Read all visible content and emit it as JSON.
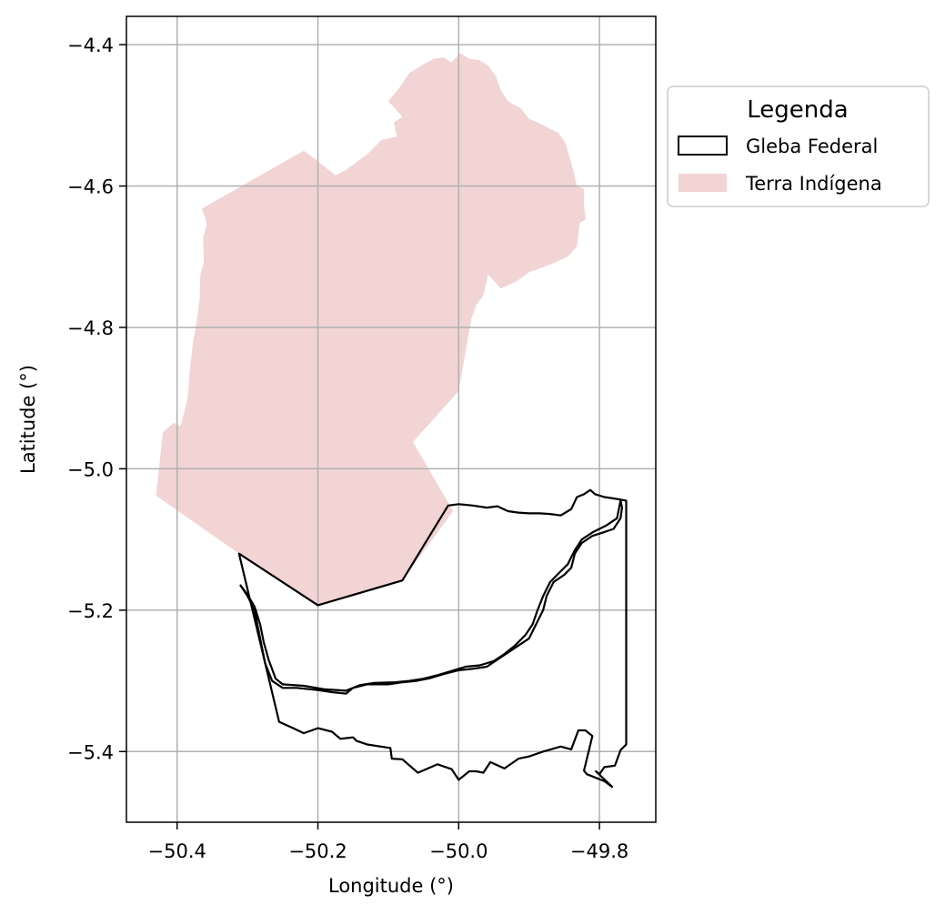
{
  "chart_data": {
    "type": "map",
    "xlabel": "Longitude (°)",
    "ylabel": "Latitude (°)",
    "xlim": [
      -50.472,
      -49.72
    ],
    "ylim": [
      -5.5,
      -4.36
    ],
    "xticks": [
      -50.4,
      -50.2,
      -50.0,
      -49.8
    ],
    "yticks": [
      -4.4,
      -4.6,
      -4.8,
      -5.0,
      -5.2,
      -5.4
    ],
    "xtick_labels": [
      "−50.4",
      "−50.2",
      "−50.0",
      "−49.8"
    ],
    "ytick_labels": [
      "−4.4",
      "−4.6",
      "−4.8",
      "−5.0",
      "−5.2",
      "−5.4"
    ],
    "grid": true,
    "legend": {
      "title": "Legenda",
      "placement": "outside-right-top",
      "entries": [
        "Gleba Federal",
        "Terra Indígena"
      ]
    },
    "colors": {
      "terra_indigena_fill": "#f2d4d4",
      "gleba_edge": "#000000",
      "grid": "#b0b0b0"
    },
    "layers": [
      {
        "name": "Terra Indígena",
        "kind": "filled-polygon",
        "rings": [
          [
            [
              -50.43,
              -5.038
            ],
            [
              -50.42,
              -4.948
            ],
            [
              -50.405,
              -4.935
            ],
            [
              -50.395,
              -4.94
            ],
            [
              -50.385,
              -4.9
            ],
            [
              -50.382,
              -4.86
            ],
            [
              -50.378,
              -4.825
            ],
            [
              -50.372,
              -4.79
            ],
            [
              -50.368,
              -4.76
            ],
            [
              -50.367,
              -4.726
            ],
            [
              -50.362,
              -4.708
            ],
            [
              -50.363,
              -4.672
            ],
            [
              -50.358,
              -4.655
            ],
            [
              -50.36,
              -4.645
            ],
            [
              -50.365,
              -4.632
            ],
            [
              -50.22,
              -4.55
            ],
            [
              -50.2,
              -4.565
            ],
            [
              -50.175,
              -4.585
            ],
            [
              -50.16,
              -4.577
            ],
            [
              -50.13,
              -4.555
            ],
            [
              -50.11,
              -4.535
            ],
            [
              -50.088,
              -4.53
            ],
            [
              -50.092,
              -4.51
            ],
            [
              -50.08,
              -4.502
            ],
            [
              -50.1,
              -4.48
            ],
            [
              -50.085,
              -4.462
            ],
            [
              -50.07,
              -4.44
            ],
            [
              -50.05,
              -4.428
            ],
            [
              -50.035,
              -4.42
            ],
            [
              -50.022,
              -4.418
            ],
            [
              -50.01,
              -4.425
            ],
            [
              -49.998,
              -4.412
            ],
            [
              -49.985,
              -4.42
            ],
            [
              -49.97,
              -4.422
            ],
            [
              -49.958,
              -4.43
            ],
            [
              -49.947,
              -4.445
            ],
            [
              -49.94,
              -4.465
            ],
            [
              -49.93,
              -4.48
            ],
            [
              -49.912,
              -4.49
            ],
            [
              -49.9,
              -4.505
            ],
            [
              -49.888,
              -4.51
            ],
            [
              -49.868,
              -4.52
            ],
            [
              -49.858,
              -4.525
            ],
            [
              -49.848,
              -4.54
            ],
            [
              -49.843,
              -4.558
            ],
            [
              -49.838,
              -4.575
            ],
            [
              -49.832,
              -4.6
            ],
            [
              -49.822,
              -4.604
            ],
            [
              -49.822,
              -4.625
            ],
            [
              -49.82,
              -4.648
            ],
            [
              -49.828,
              -4.652
            ],
            [
              -49.832,
              -4.685
            ],
            [
              -49.845,
              -4.7
            ],
            [
              -49.863,
              -4.708
            ],
            [
              -49.88,
              -4.715
            ],
            [
              -49.9,
              -4.722
            ],
            [
              -49.918,
              -4.735
            ],
            [
              -49.94,
              -4.745
            ],
            [
              -49.958,
              -4.725
            ],
            [
              -49.965,
              -4.755
            ],
            [
              -49.975,
              -4.768
            ],
            [
              -49.982,
              -4.788
            ],
            [
              -50.0,
              -4.89
            ],
            [
              -50.065,
              -4.962
            ],
            [
              -50.008,
              -5.06
            ],
            [
              -50.08,
              -5.158
            ],
            [
              -50.2,
              -5.193
            ],
            [
              -50.312,
              -5.12
            ],
            [
              -50.43,
              -5.038
            ]
          ]
        ]
      },
      {
        "name": "Gleba Federal",
        "kind": "outline-polygon",
        "rings": [
          [
            [
              -50.312,
              -5.12
            ],
            [
              -50.2,
              -5.193
            ],
            [
              -50.08,
              -5.158
            ],
            [
              -50.015,
              -5.052
            ],
            [
              -50.0,
              -5.05
            ],
            [
              -49.98,
              -5.052
            ],
            [
              -49.96,
              -5.055
            ],
            [
              -49.945,
              -5.053
            ],
            [
              -49.93,
              -5.06
            ],
            [
              -49.915,
              -5.062
            ],
            [
              -49.9,
              -5.063
            ],
            [
              -49.885,
              -5.063
            ],
            [
              -49.87,
              -5.064
            ],
            [
              -49.855,
              -5.066
            ],
            [
              -49.845,
              -5.06
            ],
            [
              -49.84,
              -5.057
            ],
            [
              -49.832,
              -5.04
            ],
            [
              -49.822,
              -5.036
            ],
            [
              -49.813,
              -5.03
            ],
            [
              -49.806,
              -5.036
            ],
            [
              -49.793,
              -5.04
            ],
            [
              -49.78,
              -5.042
            ],
            [
              -49.768,
              -5.044
            ],
            [
              -49.762,
              -5.045
            ],
            [
              -49.762,
              -5.39
            ],
            [
              -49.77,
              -5.398
            ],
            [
              -49.778,
              -5.42
            ],
            [
              -49.793,
              -5.422
            ],
            [
              -49.8,
              -5.432
            ],
            [
              -49.805,
              -5.428
            ],
            [
              -49.782,
              -5.45
            ],
            [
              -49.793,
              -5.442
            ],
            [
              -49.818,
              -5.432
            ],
            [
              -49.822,
              -5.427
            ],
            [
              -49.81,
              -5.378
            ],
            [
              -49.82,
              -5.37
            ],
            [
              -49.83,
              -5.37
            ],
            [
              -49.84,
              -5.397
            ],
            [
              -49.855,
              -5.393
            ],
            [
              -49.88,
              -5.4
            ],
            [
              -49.9,
              -5.407
            ],
            [
              -49.915,
              -5.41
            ],
            [
              -49.935,
              -5.424
            ],
            [
              -49.955,
              -5.415
            ],
            [
              -49.965,
              -5.43
            ],
            [
              -49.975,
              -5.428
            ],
            [
              -49.985,
              -5.428
            ],
            [
              -50.0,
              -5.44
            ],
            [
              -50.01,
              -5.425
            ],
            [
              -50.03,
              -5.418
            ],
            [
              -50.058,
              -5.43
            ],
            [
              -50.08,
              -5.411
            ],
            [
              -50.095,
              -5.41
            ],
            [
              -50.097,
              -5.395
            ],
            [
              -50.13,
              -5.39
            ],
            [
              -50.145,
              -5.385
            ],
            [
              -50.15,
              -5.38
            ],
            [
              -50.168,
              -5.382
            ],
            [
              -50.18,
              -5.372
            ],
            [
              -50.2,
              -5.367
            ],
            [
              -50.22,
              -5.374
            ],
            [
              -50.235,
              -5.367
            ],
            [
              -50.255,
              -5.358
            ],
            [
              -50.312,
              -5.12
            ]
          ],
          [
            [
              -50.31,
              -5.165
            ],
            [
              -50.3,
              -5.18
            ],
            [
              -50.29,
              -5.2
            ],
            [
              -50.285,
              -5.225
            ],
            [
              -50.28,
              -5.25
            ],
            [
              -50.275,
              -5.275
            ],
            [
              -50.265,
              -5.3
            ],
            [
              -50.25,
              -5.31
            ],
            [
              -50.23,
              -5.31
            ],
            [
              -50.2,
              -5.313
            ],
            [
              -50.18,
              -5.316
            ],
            [
              -50.16,
              -5.318
            ],
            [
              -50.15,
              -5.31
            ],
            [
              -50.13,
              -5.305
            ],
            [
              -50.1,
              -5.305
            ],
            [
              -50.08,
              -5.302
            ],
            [
              -50.06,
              -5.3
            ],
            [
              -50.04,
              -5.296
            ],
            [
              -50.02,
              -5.29
            ],
            [
              -50.0,
              -5.285
            ],
            [
              -49.98,
              -5.283
            ],
            [
              -49.96,
              -5.28
            ],
            [
              -49.945,
              -5.27
            ],
            [
              -49.93,
              -5.26
            ],
            [
              -49.915,
              -5.25
            ],
            [
              -49.9,
              -5.24
            ],
            [
              -49.89,
              -5.22
            ],
            [
              -49.88,
              -5.2
            ],
            [
              -49.875,
              -5.18
            ],
            [
              -49.865,
              -5.16
            ],
            [
              -49.85,
              -5.15
            ],
            [
              -49.84,
              -5.14
            ],
            [
              -49.835,
              -5.12
            ],
            [
              -49.825,
              -5.105
            ],
            [
              -49.81,
              -5.095
            ],
            [
              -49.795,
              -5.09
            ],
            [
              -49.78,
              -5.085
            ],
            [
              -49.77,
              -5.07
            ],
            [
              -49.768,
              -5.055
            ],
            [
              -49.77,
              -5.045
            ],
            [
              -49.775,
              -5.07
            ],
            [
              -49.79,
              -5.08
            ],
            [
              -49.81,
              -5.09
            ],
            [
              -49.825,
              -5.1
            ],
            [
              -49.835,
              -5.115
            ],
            [
              -49.845,
              -5.135
            ],
            [
              -49.858,
              -5.148
            ],
            [
              -49.87,
              -5.16
            ],
            [
              -49.88,
              -5.18
            ],
            [
              -49.888,
              -5.2
            ],
            [
              -49.895,
              -5.22
            ],
            [
              -49.905,
              -5.235
            ],
            [
              -49.92,
              -5.25
            ],
            [
              -49.935,
              -5.262
            ],
            [
              -49.95,
              -5.272
            ],
            [
              -49.97,
              -5.278
            ],
            [
              -49.99,
              -5.28
            ],
            [
              -50.01,
              -5.286
            ],
            [
              -50.03,
              -5.292
            ],
            [
              -50.05,
              -5.297
            ],
            [
              -50.07,
              -5.3
            ],
            [
              -50.09,
              -5.302
            ],
            [
              -50.12,
              -5.303
            ],
            [
              -50.14,
              -5.306
            ],
            [
              -50.16,
              -5.314
            ],
            [
              -50.19,
              -5.312
            ],
            [
              -50.22,
              -5.307
            ],
            [
              -50.25,
              -5.305
            ],
            [
              -50.26,
              -5.297
            ],
            [
              -50.27,
              -5.27
            ],
            [
              -50.277,
              -5.245
            ],
            [
              -50.282,
              -5.22
            ],
            [
              -50.29,
              -5.195
            ],
            [
              -50.3,
              -5.178
            ],
            [
              -50.31,
              -5.165
            ]
          ]
        ]
      }
    ]
  }
}
